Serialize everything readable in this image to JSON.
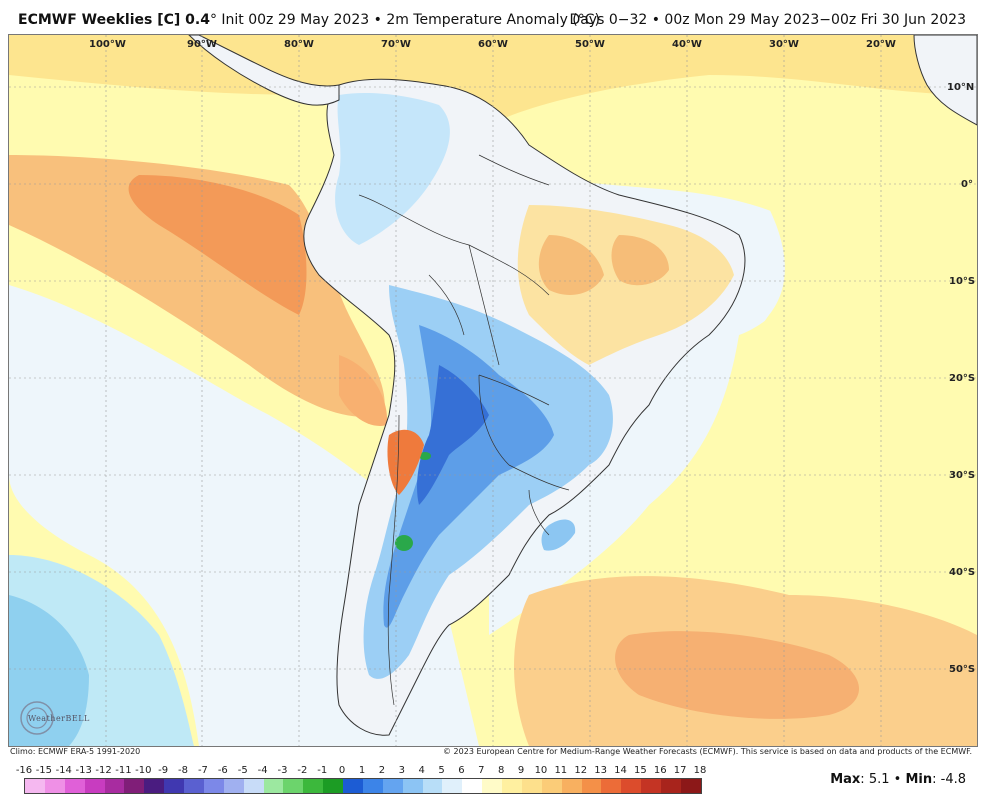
{
  "header": {
    "model": "ECMWF Weeklies [C] 0.4",
    "degree": "°",
    "init": "Init 00z 29 May 2023",
    "bullet": "•",
    "field": "2m Temperature Anomaly (",
    "field_unit": "°C)",
    "right": "Days 0−32 • 00z Mon 29 May 2023−00z Fri 30 Jun 2023"
  },
  "axes": {
    "lon_labels": [
      "100°W",
      "90°W",
      "80°W",
      "70°W",
      "60°W",
      "50°W",
      "40°W",
      "30°W",
      "20°W"
    ],
    "lat_labels": [
      "10°N",
      "0°",
      "10°S",
      "20°S",
      "30°S",
      "40°S",
      "50°S"
    ]
  },
  "footer": {
    "climo": "Climo: ECMWF ERA-5 1991-2020",
    "copyright": "© 2023 European Centre for Medium-Range Weather Forecasts (ECMWF). This service is based on data and products of the ECMWF."
  },
  "colorbar": {
    "ticks": [
      "-16",
      "-15",
      "-14",
      "-13",
      "-12",
      "-11",
      "-10",
      "-9",
      "-8",
      "-7",
      "-6",
      "-5",
      "-4",
      "-3",
      "-2",
      "-1",
      "0",
      "1",
      "2",
      "3",
      "4",
      "5",
      "6",
      "7",
      "8",
      "9",
      "10",
      "11",
      "12",
      "13",
      "14",
      "15",
      "16",
      "17",
      "18"
    ],
    "colors": [
      "#f5b8f0",
      "#ef90e6",
      "#e060d8",
      "#c83cc0",
      "#a82ca0",
      "#801e78",
      "#4a1c80",
      "#4038b0",
      "#5a60d0",
      "#7c88e8",
      "#a0b0f0",
      "#c8dcf8",
      "#9ce8a0",
      "#6cd46c",
      "#3cb83c",
      "#1c9c24",
      "#1c5cd4",
      "#3c84e8",
      "#64a4f0",
      "#8cc4f4",
      "#b8def8",
      "#e0f0fb",
      "#ffffff",
      "#fffbc8",
      "#fff0a0",
      "#fde08c",
      "#fbcc78",
      "#f8b060",
      "#f49048",
      "#ec6c38",
      "#dc4c2c",
      "#c43424",
      "#a8241c",
      "#8c1818",
      "#6c1010"
    ],
    "colors_upper": [
      "#f4e4dc",
      "#e8c8bc",
      "#dcaca0",
      "#d09084",
      "#c47468",
      "#b85c50",
      "#ac4840",
      "#a03630",
      "#e8a0a0",
      "#dc8080",
      "#d06060",
      "#c44040",
      "#b82828",
      "#a81818",
      "#981010",
      "#880808",
      "#780404",
      "#680000"
    ]
  },
  "stats": {
    "max_label": "Max",
    "max_value": "5.1",
    "sep": "•",
    "min_label": "Min",
    "min_value": "-4.8"
  },
  "branding": {
    "logo_name": "weatherbell-logo",
    "logo_text": "WeatherBELL"
  },
  "map": {
    "region": "South America",
    "overall_color_ocean": "#fffbb0",
    "cold_color": "#4a8ae0",
    "warm_color": "#f6a85c"
  }
}
